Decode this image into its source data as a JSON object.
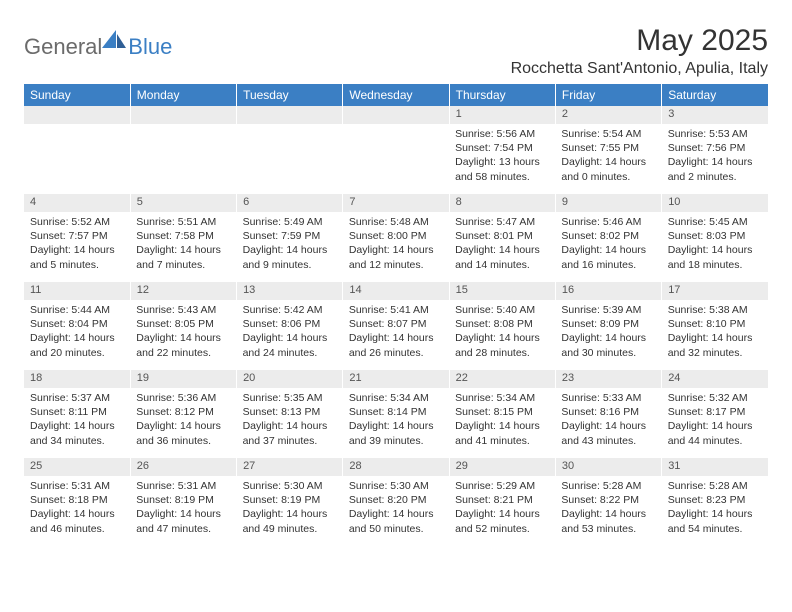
{
  "logo": {
    "part1": "General",
    "part2": "Blue"
  },
  "title": "May 2025",
  "location": "Rocchetta Sant'Antonio, Apulia, Italy",
  "header_bg": "#3b7fc4",
  "header_fg": "#ffffff",
  "daynum_bg": "#ececec",
  "text_color": "#333333",
  "cell_fontsize": 10.5,
  "weekdays": [
    "Sunday",
    "Monday",
    "Tuesday",
    "Wednesday",
    "Thursday",
    "Friday",
    "Saturday"
  ],
  "weeks": [
    {
      "nums": [
        "",
        "",
        "",
        "",
        "1",
        "2",
        "3"
      ],
      "cells": [
        null,
        null,
        null,
        null,
        {
          "sunrise": "5:56 AM",
          "sunset": "7:54 PM",
          "daylight": "13 hours and 58 minutes."
        },
        {
          "sunrise": "5:54 AM",
          "sunset": "7:55 PM",
          "daylight": "14 hours and 0 minutes."
        },
        {
          "sunrise": "5:53 AM",
          "sunset": "7:56 PM",
          "daylight": "14 hours and 2 minutes."
        }
      ]
    },
    {
      "nums": [
        "4",
        "5",
        "6",
        "7",
        "8",
        "9",
        "10"
      ],
      "cells": [
        {
          "sunrise": "5:52 AM",
          "sunset": "7:57 PM",
          "daylight": "14 hours and 5 minutes."
        },
        {
          "sunrise": "5:51 AM",
          "sunset": "7:58 PM",
          "daylight": "14 hours and 7 minutes."
        },
        {
          "sunrise": "5:49 AM",
          "sunset": "7:59 PM",
          "daylight": "14 hours and 9 minutes."
        },
        {
          "sunrise": "5:48 AM",
          "sunset": "8:00 PM",
          "daylight": "14 hours and 12 minutes."
        },
        {
          "sunrise": "5:47 AM",
          "sunset": "8:01 PM",
          "daylight": "14 hours and 14 minutes."
        },
        {
          "sunrise": "5:46 AM",
          "sunset": "8:02 PM",
          "daylight": "14 hours and 16 minutes."
        },
        {
          "sunrise": "5:45 AM",
          "sunset": "8:03 PM",
          "daylight": "14 hours and 18 minutes."
        }
      ]
    },
    {
      "nums": [
        "11",
        "12",
        "13",
        "14",
        "15",
        "16",
        "17"
      ],
      "cells": [
        {
          "sunrise": "5:44 AM",
          "sunset": "8:04 PM",
          "daylight": "14 hours and 20 minutes."
        },
        {
          "sunrise": "5:43 AM",
          "sunset": "8:05 PM",
          "daylight": "14 hours and 22 minutes."
        },
        {
          "sunrise": "5:42 AM",
          "sunset": "8:06 PM",
          "daylight": "14 hours and 24 minutes."
        },
        {
          "sunrise": "5:41 AM",
          "sunset": "8:07 PM",
          "daylight": "14 hours and 26 minutes."
        },
        {
          "sunrise": "5:40 AM",
          "sunset": "8:08 PM",
          "daylight": "14 hours and 28 minutes."
        },
        {
          "sunrise": "5:39 AM",
          "sunset": "8:09 PM",
          "daylight": "14 hours and 30 minutes."
        },
        {
          "sunrise": "5:38 AM",
          "sunset": "8:10 PM",
          "daylight": "14 hours and 32 minutes."
        }
      ]
    },
    {
      "nums": [
        "18",
        "19",
        "20",
        "21",
        "22",
        "23",
        "24"
      ],
      "cells": [
        {
          "sunrise": "5:37 AM",
          "sunset": "8:11 PM",
          "daylight": "14 hours and 34 minutes."
        },
        {
          "sunrise": "5:36 AM",
          "sunset": "8:12 PM",
          "daylight": "14 hours and 36 minutes."
        },
        {
          "sunrise": "5:35 AM",
          "sunset": "8:13 PM",
          "daylight": "14 hours and 37 minutes."
        },
        {
          "sunrise": "5:34 AM",
          "sunset": "8:14 PM",
          "daylight": "14 hours and 39 minutes."
        },
        {
          "sunrise": "5:34 AM",
          "sunset": "8:15 PM",
          "daylight": "14 hours and 41 minutes."
        },
        {
          "sunrise": "5:33 AM",
          "sunset": "8:16 PM",
          "daylight": "14 hours and 43 minutes."
        },
        {
          "sunrise": "5:32 AM",
          "sunset": "8:17 PM",
          "daylight": "14 hours and 44 minutes."
        }
      ]
    },
    {
      "nums": [
        "25",
        "26",
        "27",
        "28",
        "29",
        "30",
        "31"
      ],
      "cells": [
        {
          "sunrise": "5:31 AM",
          "sunset": "8:18 PM",
          "daylight": "14 hours and 46 minutes."
        },
        {
          "sunrise": "5:31 AM",
          "sunset": "8:19 PM",
          "daylight": "14 hours and 47 minutes."
        },
        {
          "sunrise": "5:30 AM",
          "sunset": "8:19 PM",
          "daylight": "14 hours and 49 minutes."
        },
        {
          "sunrise": "5:30 AM",
          "sunset": "8:20 PM",
          "daylight": "14 hours and 50 minutes."
        },
        {
          "sunrise": "5:29 AM",
          "sunset": "8:21 PM",
          "daylight": "14 hours and 52 minutes."
        },
        {
          "sunrise": "5:28 AM",
          "sunset": "8:22 PM",
          "daylight": "14 hours and 53 minutes."
        },
        {
          "sunrise": "5:28 AM",
          "sunset": "8:23 PM",
          "daylight": "14 hours and 54 minutes."
        }
      ]
    }
  ],
  "labels": {
    "sunrise_prefix": "Sunrise: ",
    "sunset_prefix": "Sunset: ",
    "daylight_prefix": "Daylight: "
  }
}
